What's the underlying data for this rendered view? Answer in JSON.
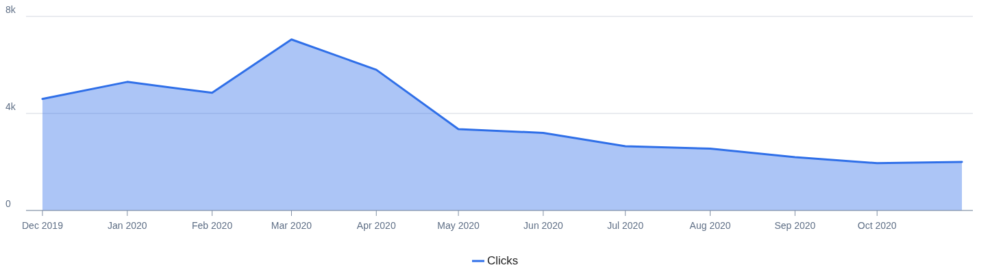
{
  "chart_data": {
    "type": "area",
    "x": [
      "2019-12-01",
      "2020-01-01",
      "2020-02-01",
      "2020-03-01",
      "2020-04-01",
      "2020-05-01",
      "2020-06-01",
      "2020-07-01",
      "2020-08-01",
      "2020-09-01",
      "2020-10-01",
      "2020-11-01"
    ],
    "series": [
      {
        "name": "Clicks",
        "color": "#2f6fe8",
        "values": [
          4600,
          5300,
          4850,
          7050,
          5800,
          3350,
          3200,
          2650,
          2550,
          2200,
          1950,
          2000
        ]
      }
    ],
    "xlim": [
      "2019-11-25",
      "2020-11-05"
    ],
    "xticks": [
      {
        "value": "2019-12-01",
        "label": "Dec 2019"
      },
      {
        "value": "2020-01-01",
        "label": "Jan 2020"
      },
      {
        "value": "2020-02-01",
        "label": "Feb 2020"
      },
      {
        "value": "2020-03-01",
        "label": "Mar 2020"
      },
      {
        "value": "2020-04-01",
        "label": "Apr 2020"
      },
      {
        "value": "2020-05-01",
        "label": "May 2020"
      },
      {
        "value": "2020-06-01",
        "label": "Jun 2020"
      },
      {
        "value": "2020-07-01",
        "label": "Jul 2020"
      },
      {
        "value": "2020-08-01",
        "label": "Aug 2020"
      },
      {
        "value": "2020-09-01",
        "label": "Sep 2020"
      },
      {
        "value": "2020-10-01",
        "label": "Oct 2020"
      }
    ],
    "ylim": [
      0,
      8000
    ],
    "yticks": [
      {
        "value": 0,
        "label": "0"
      },
      {
        "value": 4000,
        "label": "4k"
      },
      {
        "value": 8000,
        "label": "8k"
      }
    ],
    "grid": "y",
    "legend": "bottom"
  }
}
